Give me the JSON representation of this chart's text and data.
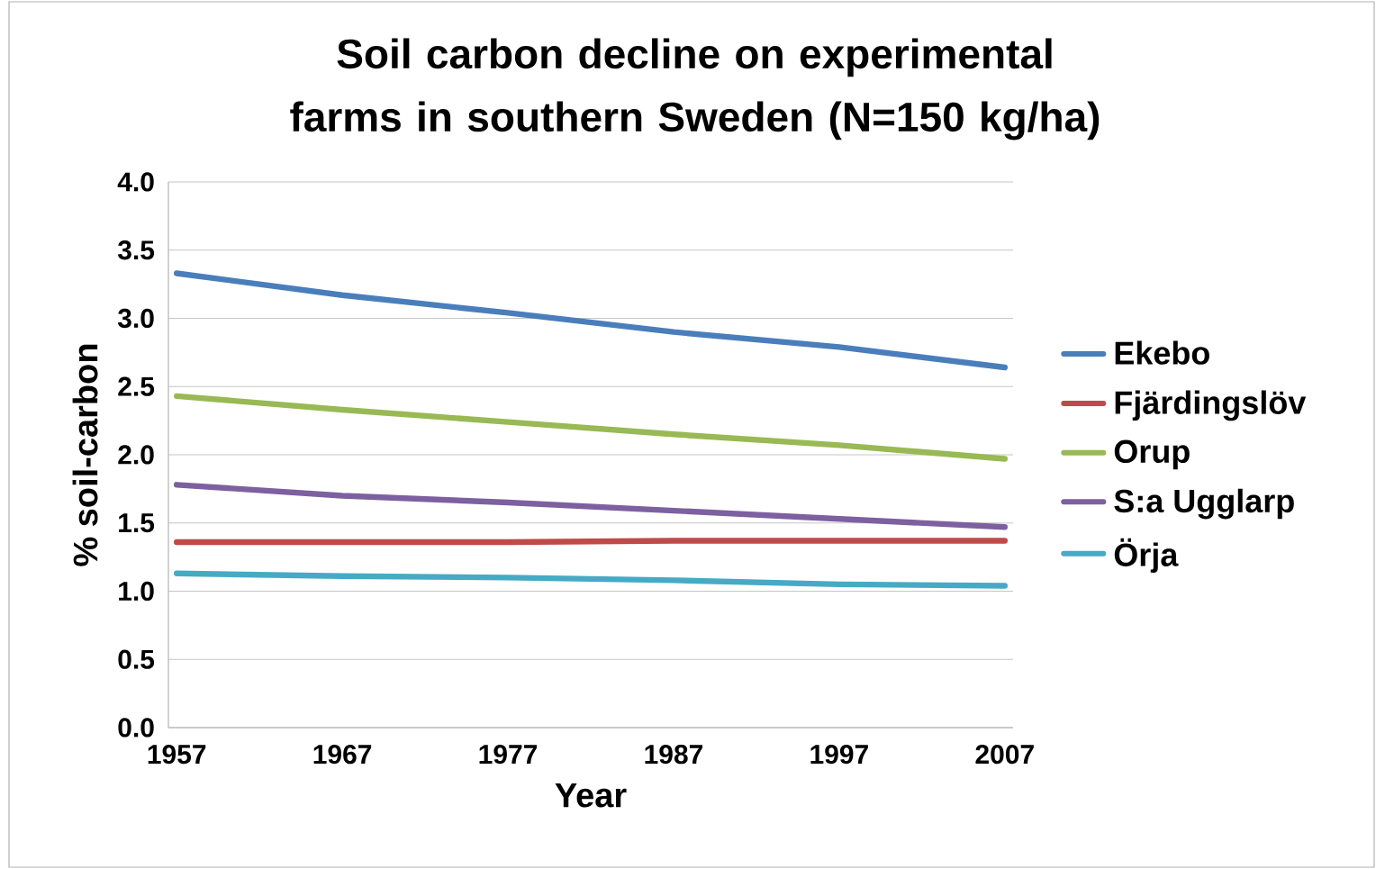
{
  "chart_data": {
    "type": "line",
    "title": "Soil carbon decline on experimental farms in southern Sweden (N=150 kg/ha)",
    "xlabel": "Year",
    "ylabel": "% soil-carbon",
    "x": [
      1957,
      1967,
      1977,
      1987,
      1997,
      2007
    ],
    "series": [
      {
        "name": "Ekebo",
        "color": "#4a7ebb",
        "values": [
          3.33,
          3.17,
          3.04,
          2.9,
          2.79,
          2.64
        ]
      },
      {
        "name": "Fjärdingslöv",
        "color": "#be4b48",
        "values": [
          1.36,
          1.36,
          1.36,
          1.37,
          1.37,
          1.37
        ]
      },
      {
        "name": "Orup",
        "color": "#98b954",
        "values": [
          2.43,
          2.33,
          2.24,
          2.15,
          2.07,
          1.97
        ]
      },
      {
        "name": "S:a Ugglarp",
        "color": "#7d60a0",
        "values": [
          1.78,
          1.7,
          1.65,
          1.59,
          1.53,
          1.47
        ]
      },
      {
        "name": "Örja",
        "color": "#46aac5",
        "values": [
          1.13,
          1.11,
          1.1,
          1.08,
          1.05,
          1.04
        ]
      }
    ],
    "xlim": [
      1956.5,
      2007.5
    ],
    "xticks": [
      1957,
      1967,
      1977,
      1987,
      1997,
      2007
    ],
    "ylim": [
      0,
      4
    ],
    "yticks": [
      {
        "value": 0,
        "label": "0.0"
      },
      {
        "value": 0.5,
        "label": "0.5"
      },
      {
        "value": 1,
        "label": "1.0"
      },
      {
        "value": 1.5,
        "label": "1.5"
      },
      {
        "value": 2,
        "label": "2.0"
      },
      {
        "value": 2.5,
        "label": "2.5"
      },
      {
        "value": 3,
        "label": "3.0"
      },
      {
        "value": 3.5,
        "label": "3.5"
      },
      {
        "value": 4,
        "label": "4.0"
      }
    ],
    "grid": "y",
    "legend": "right",
    "marker": "none",
    "line_style": "solid"
  }
}
